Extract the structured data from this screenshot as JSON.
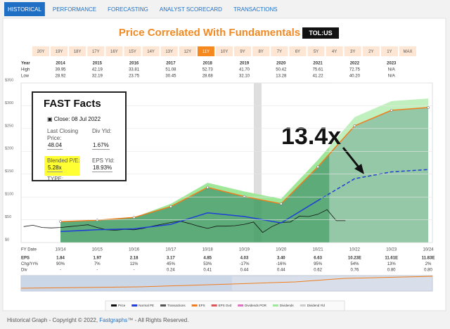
{
  "tabs": [
    "HISTORICAL",
    "PERFORMANCE",
    "FORECASTING",
    "ANALYST SCORECARD",
    "TRANSACTIONS"
  ],
  "active_tab": 0,
  "title": "Price Correlated With Fundamentals",
  "ticker": "TOL:US",
  "ranges": [
    "20Y",
    "19Y",
    "18Y",
    "17Y",
    "16Y",
    "15Y",
    "14Y",
    "13Y",
    "12Y",
    "11Y",
    "10Y",
    "9Y",
    "8Y",
    "7Y",
    "6Y",
    "5Y",
    "4Y",
    "3Y",
    "2Y",
    "1Y",
    "MAX"
  ],
  "active_range": 9,
  "year_table": {
    "rows": [
      [
        "Year",
        "2014",
        "2015",
        "2016",
        "2017",
        "2018",
        "2019",
        "2020",
        "2021",
        "2022",
        "2023"
      ],
      [
        "High",
        "39.95",
        "42.19",
        "33.81",
        "51.08",
        "52.73",
        "41.70",
        "50.42",
        "75.61",
        "72.75",
        "N/A"
      ],
      [
        "Low",
        "28.92",
        "32.19",
        "23.75",
        "30.45",
        "28.68",
        "32.10",
        "13.28",
        "41.22",
        "40.20",
        "N/A"
      ]
    ]
  },
  "fast_facts": {
    "title": "FAST Facts",
    "close": "Close: 08 Jul 2022",
    "last_price_label": "Last Closing Price:",
    "last_price": "48.04",
    "div_yld_label": "Div Yld:",
    "div_yld": "1.67%",
    "pe_label": "Blended P/E:",
    "pe": "5.28x",
    "eps_yld_label": "EPS Yld:",
    "eps_yld": "18.93%",
    "type_label": "TYPE:"
  },
  "chart_data": {
    "type": "line",
    "x_label": "FY Date",
    "categories": [
      "10/14",
      "10/15",
      "10/16",
      "10/17",
      "10/18",
      "10/19",
      "10/20",
      "10/21",
      "10/22",
      "10/23",
      "10/24"
    ],
    "ylim": [
      0,
      350
    ],
    "yticks": [
      {
        "value": 0,
        "label": "$0"
      },
      {
        "value": 50,
        "label": "$50"
      },
      {
        "value": 100,
        "label": "$100"
      },
      {
        "value": 150,
        "label": "$150"
      },
      {
        "value": 200,
        "label": "$200"
      },
      {
        "value": 250,
        "label": "$250"
      },
      {
        "value": 300,
        "label": "$300"
      },
      {
        "value": 350,
        "label": "$350"
      }
    ],
    "grid": true,
    "estimate_from": 8,
    "series": [
      {
        "role": "eps",
        "color": "#f07d1e",
        "values": [
          46,
          49,
          55,
          79,
          121,
          101,
          85,
          166,
          256,
          290,
          296
        ]
      },
      {
        "role": "dividends",
        "color": "#9fe89a",
        "values": [
          0,
          0,
          0,
          6,
          10,
          11,
          11,
          15,
          19,
          20,
          20
        ]
      },
      {
        "role": "normal_pe",
        "color": "#1f3fd6",
        "values": [
          24,
          28,
          30,
          40,
          65,
          57,
          43,
          92,
          140,
          155,
          160
        ]
      }
    ],
    "price": {
      "color": "#111111",
      "x": [
        "10/13",
        "01/14",
        "04/14",
        "07/14",
        "10/14",
        "01/15",
        "04/15",
        "07/15",
        "10/15",
        "01/16",
        "04/16",
        "07/16",
        "10/16",
        "01/17",
        "04/17",
        "07/17",
        "10/17",
        "01/18",
        "04/18",
        "07/18",
        "10/18",
        "01/19",
        "04/19",
        "07/19",
        "10/19",
        "01/20",
        "04/20",
        "07/20",
        "10/20",
        "01/21",
        "04/21",
        "07/21",
        "10/21",
        "01/22",
        "04/22",
        "07/22"
      ],
      "values": [
        35,
        38,
        33,
        32,
        33,
        35,
        37,
        39,
        33,
        28,
        27,
        29,
        28,
        31,
        36,
        40,
        44,
        47,
        42,
        36,
        31,
        36,
        36,
        37,
        40,
        45,
        22,
        35,
        44,
        45,
        58,
        57,
        62,
        72,
        48,
        48
      ]
    },
    "annotation": "13.4x"
  },
  "stats_table": {
    "rows": [
      [
        "EPS",
        "1.84",
        "1.97",
        "2.18",
        "3.17",
        "4.85",
        "4.03",
        "3.40",
        "6.63",
        "10.23E",
        "11.61E",
        "11.83E"
      ],
      [
        "Chg/Yr%",
        "90%",
        "7%",
        "11%",
        "45%",
        "53%",
        "-17%",
        "-16%",
        "95%",
        "54%",
        "13%",
        "2%"
      ],
      [
        "Div",
        "-",
        "-",
        "-",
        "0.24",
        "0.41",
        "0.44",
        "0.44",
        "0.62",
        "0.76",
        "0.80",
        "0.80"
      ]
    ]
  },
  "legend": [
    {
      "name": "Price",
      "color": "#111111"
    },
    {
      "name": "Normal PE",
      "color": "#1f3fd6"
    },
    {
      "name": "Transactions",
      "color": "#555555"
    },
    {
      "name": "EPS",
      "color": "#f07d1e"
    },
    {
      "name": "EPS Ovd",
      "color": "#e05555"
    },
    {
      "name": "Dividends POR",
      "color": "#e070c0"
    },
    {
      "name": "Dividends",
      "color": "#9fe89a"
    },
    {
      "name": "Dividend Yld",
      "color": "#cccccc"
    }
  ],
  "footer": {
    "text": "Historical Graph - Copyright © 2022, ",
    "link": "Fastgraphs",
    "tail": "™ - All Rights Reserved."
  }
}
